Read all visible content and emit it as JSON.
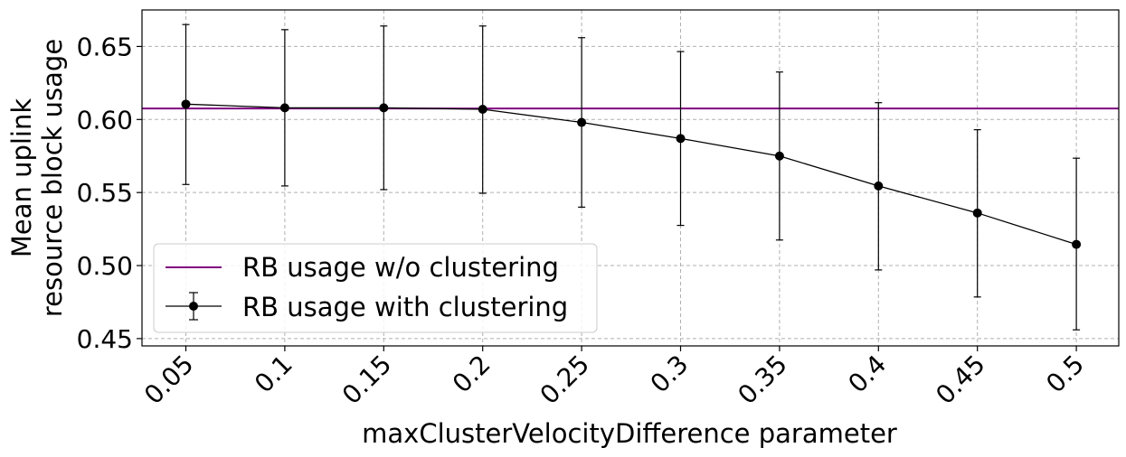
{
  "chart_data": {
    "type": "line",
    "title": "",
    "xlabel": "maxClusterVelocityDifference parameter",
    "ylabel_lines": [
      "Mean uplink",
      "resource block usage"
    ],
    "categories": [
      "0.05",
      "0.1",
      "0.15",
      "0.2",
      "0.25",
      "0.3",
      "0.35",
      "0.4",
      "0.45",
      "0.5"
    ],
    "ylim": [
      0.445,
      0.675
    ],
    "yticks": [
      0.45,
      0.5,
      0.55,
      0.6,
      0.65
    ],
    "ytick_labels": [
      "0.45",
      "0.50",
      "0.55",
      "0.60",
      "0.65"
    ],
    "grid": true,
    "legend_position": "lower-left",
    "series": [
      {
        "name": "RB usage w/o clustering",
        "style": "hline",
        "color": "#800080",
        "value": 0.6075
      },
      {
        "name": "RB usage with clustering",
        "style": "errorbar",
        "color": "#000000",
        "values": [
          0.6105,
          0.608,
          0.608,
          0.607,
          0.598,
          0.587,
          0.575,
          0.5545,
          0.536,
          0.5145
        ],
        "err_low": [
          0.5555,
          0.5545,
          0.552,
          0.5495,
          0.54,
          0.5275,
          0.5175,
          0.497,
          0.4785,
          0.456
        ],
        "err_high": [
          0.665,
          0.6615,
          0.664,
          0.664,
          0.656,
          0.6465,
          0.6325,
          0.6115,
          0.593,
          0.5735
        ]
      }
    ]
  }
}
